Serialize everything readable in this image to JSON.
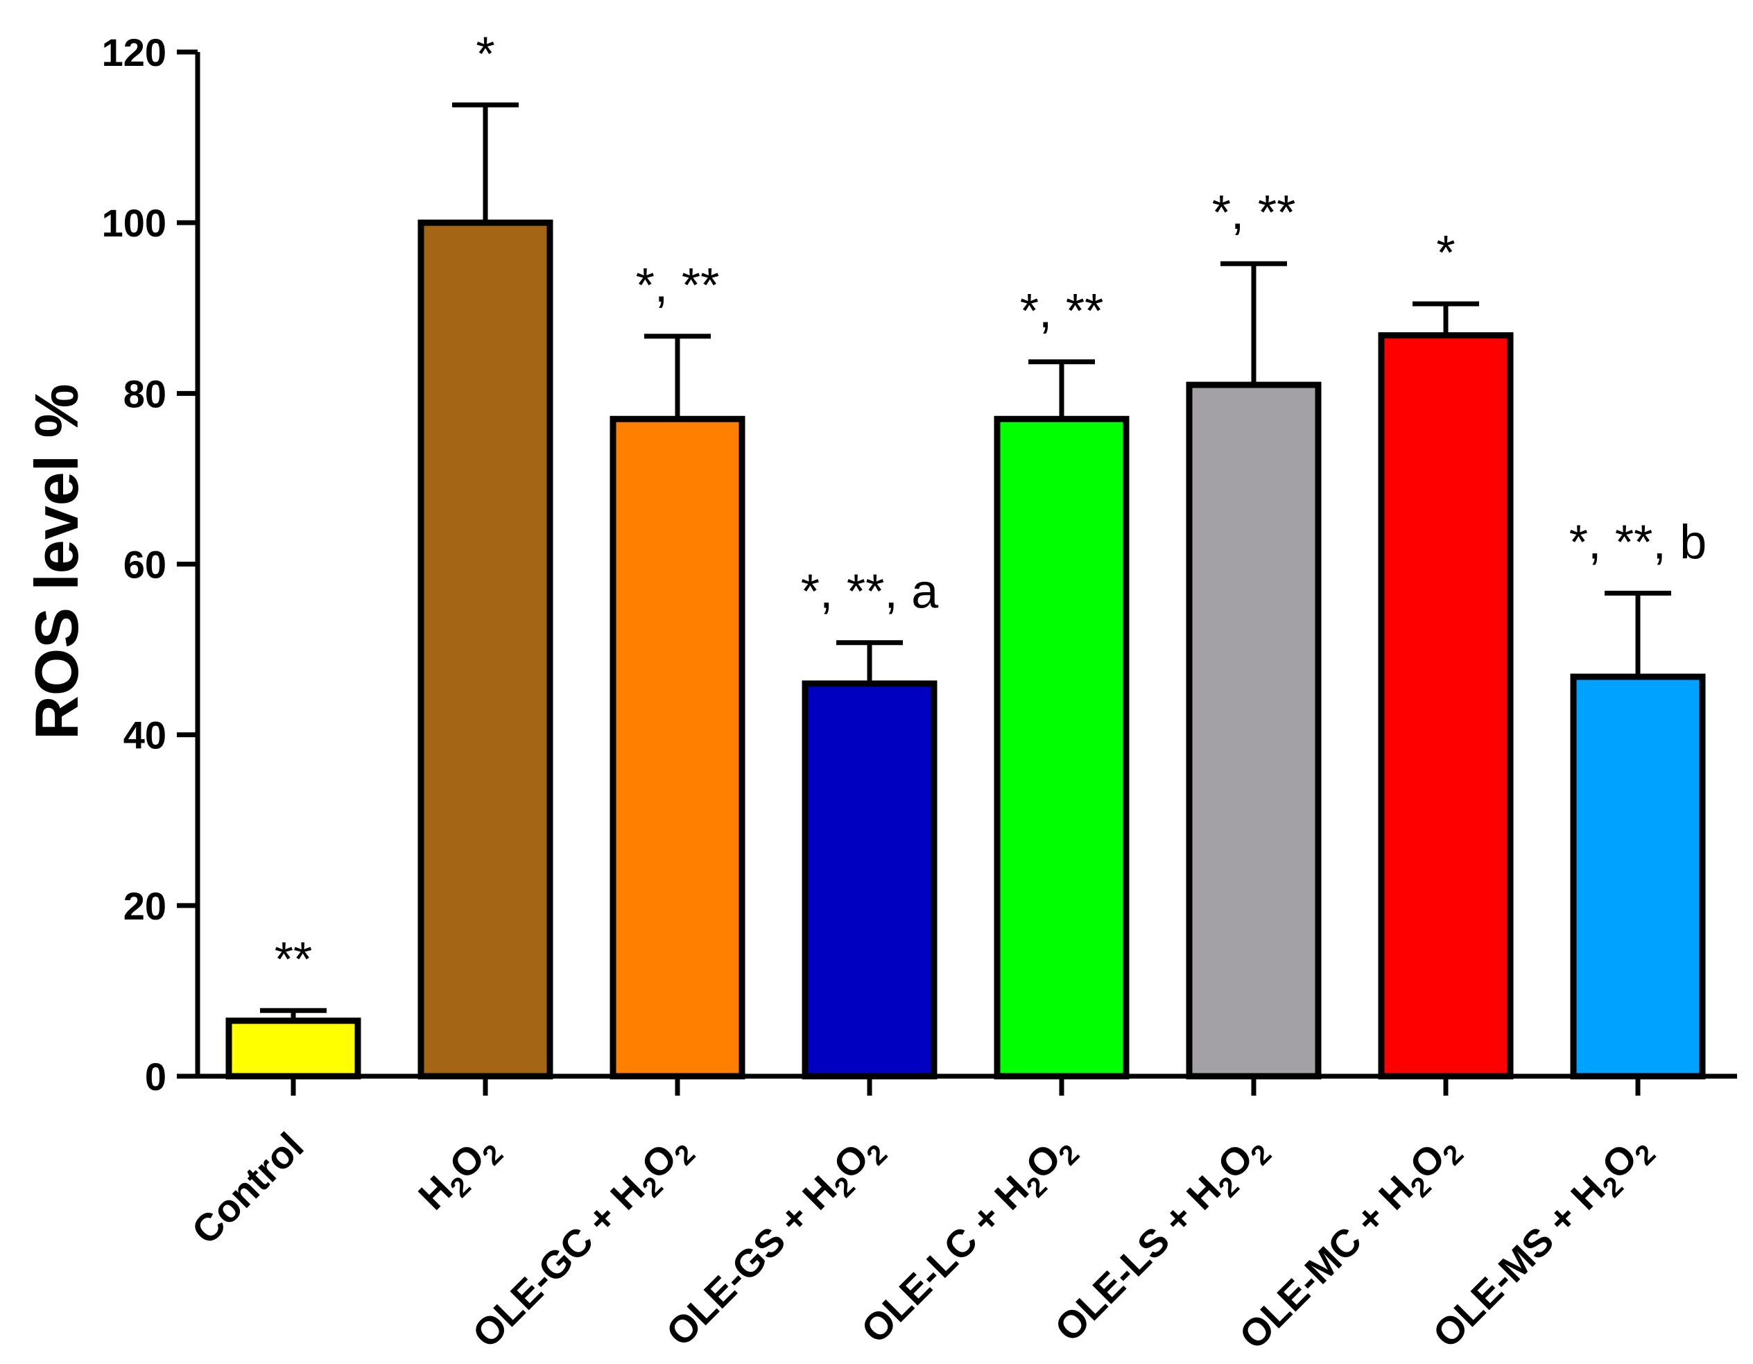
{
  "chart_data": {
    "type": "bar",
    "title": "",
    "xlabel": "",
    "ylabel": "ROS level %",
    "ylim": [
      0,
      120
    ],
    "yticks": [
      "0",
      "20",
      "40",
      "60",
      "80",
      "100",
      "120"
    ],
    "categories": [
      {
        "base": "Control",
        "reagent": ""
      },
      {
        "base": "",
        "reagent": "H2O2"
      },
      {
        "base": "OLE-GC + ",
        "reagent": "H2O2"
      },
      {
        "base": "OLE-GS + ",
        "reagent": "H2O2"
      },
      {
        "base": "OLE-LC + ",
        "reagent": "H2O2"
      },
      {
        "base": "OLE-LS + ",
        "reagent": "H2O2"
      },
      {
        "base": "OLE-MC + ",
        "reagent": "H2O2"
      },
      {
        "base": "OLE-MS + ",
        "reagent": "H2O2"
      }
    ],
    "values": [
      6.5,
      100,
      77,
      46,
      77,
      81,
      86.8,
      46.8
    ],
    "errors": [
      1.2,
      13.8,
      9.7,
      4.8,
      6.7,
      14.2,
      3.7,
      9.8
    ],
    "annotations": [
      "**",
      "*",
      "*, **",
      "*, **, a",
      "*, **",
      "*, **",
      "*",
      "*, **, b"
    ],
    "colors": [
      "#FFFF00",
      "#A46614",
      "#FF8000",
      "#0000C0",
      "#00FF00",
      "#A3A1A6",
      "#FF0000",
      "#00A2FF"
    ]
  }
}
